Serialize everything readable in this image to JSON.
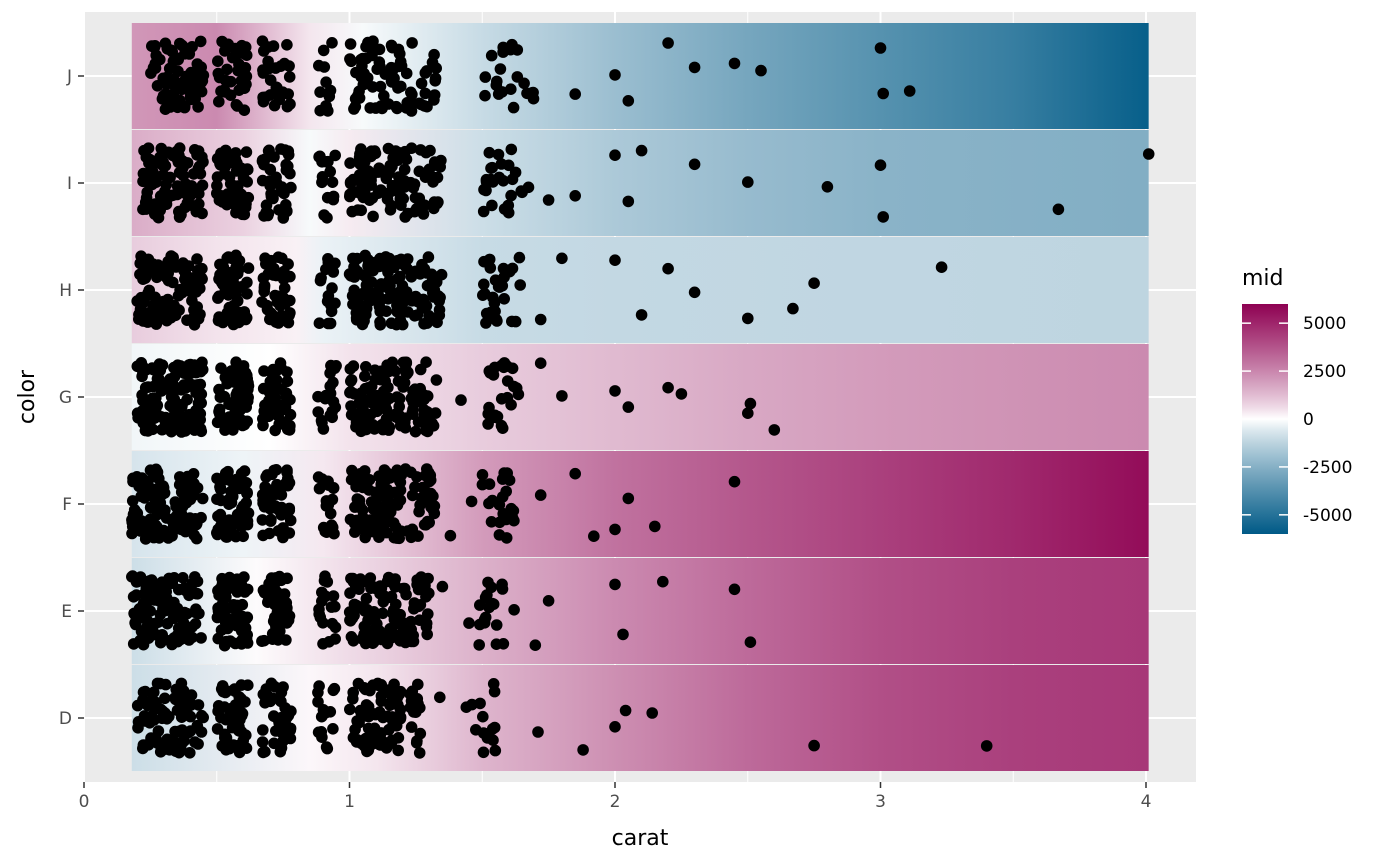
{
  "chart_data": {
    "type": "scatter",
    "subtype": "jittered strip plot over gradient band background",
    "xlabel": "carat",
    "ylabel": "color",
    "xlim": [
      0,
      4.2
    ],
    "x_ticks": [
      "0",
      "1",
      "2",
      "3",
      "4"
    ],
    "x_tick_values": [
      0,
      1,
      2,
      3,
      4
    ],
    "categories": [
      "D",
      "E",
      "F",
      "G",
      "H",
      "I",
      "J"
    ],
    "band_x_range": [
      0.18,
      4.01
    ],
    "point_color": "#000000",
    "panel_background": "#ebebeb",
    "grid_color": "#ffffff",
    "legend": {
      "title": "mid",
      "position": "right",
      "labels": [
        "5000",
        "2500",
        "0",
        "-2500",
        "-5000"
      ],
      "label_values": [
        5000,
        2500,
        0,
        -2500,
        -5000
      ],
      "range": [
        -6000,
        6000
      ],
      "colors": {
        "low": "#005A87",
        "mid": "#ffffff",
        "high": "#8E0152"
      }
    },
    "band_gradients": [
      {
        "category": "D",
        "stops": [
          [
            0.18,
            -900
          ],
          [
            0.85,
            100
          ],
          [
            1.1,
            400
          ],
          [
            1.5,
            1400
          ],
          [
            2.0,
            2300
          ],
          [
            2.5,
            3200
          ],
          [
            3.0,
            3900
          ],
          [
            3.5,
            4300
          ],
          [
            4.01,
            4500
          ]
        ]
      },
      {
        "category": "E",
        "stops": [
          [
            0.18,
            -900
          ],
          [
            0.65,
            50
          ],
          [
            1.0,
            600
          ],
          [
            1.5,
            1500
          ],
          [
            2.0,
            2400
          ],
          [
            2.5,
            3200
          ],
          [
            3.0,
            3900
          ],
          [
            3.5,
            4300
          ],
          [
            4.01,
            4500
          ]
        ]
      },
      {
        "category": "F",
        "stops": [
          [
            0.18,
            -700
          ],
          [
            0.6,
            -250
          ],
          [
            0.9,
            350
          ],
          [
            1.5,
            2000
          ],
          [
            2.0,
            3000
          ],
          [
            2.5,
            3700
          ],
          [
            3.0,
            4300
          ],
          [
            3.5,
            4900
          ],
          [
            4.01,
            5700
          ]
        ]
      },
      {
        "category": "G",
        "stops": [
          [
            0.18,
            -200
          ],
          [
            0.7,
            0
          ],
          [
            1.0,
            450
          ],
          [
            1.5,
            900
          ],
          [
            2.0,
            1300
          ],
          [
            2.5,
            1700
          ],
          [
            3.0,
            2000
          ],
          [
            3.5,
            2200
          ],
          [
            4.01,
            2400
          ]
        ]
      },
      {
        "category": "H",
        "stops": [
          [
            0.18,
            900
          ],
          [
            0.5,
            450
          ],
          [
            0.8,
            200
          ],
          [
            0.9,
            -300
          ],
          [
            1.5,
            -1000
          ],
          [
            2.0,
            -1100
          ],
          [
            3.0,
            -1150
          ],
          [
            4.01,
            -1200
          ]
        ]
      },
      {
        "category": "I",
        "stops": [
          [
            0.18,
            1600
          ],
          [
            0.6,
            800
          ],
          [
            0.85,
            -100
          ],
          [
            1.0,
            300
          ],
          [
            1.5,
            -900
          ],
          [
            2.0,
            -1600
          ],
          [
            2.5,
            -2100
          ],
          [
            3.0,
            -2400
          ],
          [
            4.01,
            -2600
          ]
        ]
      },
      {
        "category": "J",
        "stops": [
          [
            0.18,
            2100
          ],
          [
            0.5,
            2400
          ],
          [
            0.85,
            400
          ],
          [
            1.05,
            -100
          ],
          [
            1.5,
            -1000
          ],
          [
            2.0,
            -2000
          ],
          [
            2.5,
            -2900
          ],
          [
            3.0,
            -3700
          ],
          [
            3.5,
            -4500
          ],
          [
            4.01,
            -5800
          ]
        ]
      }
    ],
    "point_clusters": [
      {
        "category": "D",
        "ranges": [
          [
            0.2,
            0.45,
            90
          ],
          [
            0.5,
            0.62,
            55
          ],
          [
            0.67,
            0.78,
            40
          ],
          [
            0.88,
            0.95,
            15
          ],
          [
            1.0,
            1.2,
            75
          ],
          [
            1.22,
            1.27,
            15
          ],
          [
            1.46,
            1.55,
            14
          ]
        ],
        "x": [
          1.34,
          1.44,
          1.71,
          1.88,
          2.0,
          2.04,
          2.14,
          2.75,
          3.4
        ]
      },
      {
        "category": "E",
        "ranges": [
          [
            0.18,
            0.45,
            110
          ],
          [
            0.5,
            0.62,
            60
          ],
          [
            0.67,
            0.78,
            45
          ],
          [
            0.88,
            0.95,
            18
          ],
          [
            1.0,
            1.22,
            85
          ],
          [
            1.23,
            1.3,
            25
          ],
          [
            1.48,
            1.58,
            18
          ]
        ],
        "x": [
          1.35,
          1.45,
          1.62,
          1.7,
          1.75,
          2.0,
          2.03,
          2.18,
          2.45,
          2.51
        ]
      },
      {
        "category": "F",
        "ranges": [
          [
            0.18,
            0.45,
            120
          ],
          [
            0.5,
            0.62,
            65
          ],
          [
            0.67,
            0.78,
            50
          ],
          [
            0.88,
            0.95,
            20
          ],
          [
            1.0,
            1.22,
            90
          ],
          [
            1.23,
            1.32,
            30
          ],
          [
            1.5,
            1.62,
            22
          ]
        ],
        "x": [
          1.38,
          1.46,
          1.72,
          1.85,
          1.92,
          2.0,
          2.05,
          2.15,
          2.45
        ]
      },
      {
        "category": "G",
        "ranges": [
          [
            0.2,
            0.45,
            120
          ],
          [
            0.5,
            0.62,
            65
          ],
          [
            0.67,
            0.78,
            50
          ],
          [
            0.88,
            0.95,
            20
          ],
          [
            1.0,
            1.22,
            95
          ],
          [
            1.23,
            1.33,
            32
          ],
          [
            1.5,
            1.64,
            25
          ]
        ],
        "x": [
          1.42,
          1.72,
          1.8,
          2.0,
          2.05,
          2.2,
          2.25,
          2.5,
          2.51,
          2.6
        ]
      },
      {
        "category": "H",
        "ranges": [
          [
            0.2,
            0.45,
            100
          ],
          [
            0.5,
            0.62,
            60
          ],
          [
            0.67,
            0.78,
            45
          ],
          [
            0.88,
            0.95,
            18
          ],
          [
            1.0,
            1.22,
            90
          ],
          [
            1.23,
            1.35,
            35
          ],
          [
            1.5,
            1.65,
            28
          ]
        ],
        "x": [
          1.72,
          1.8,
          2.0,
          2.1,
          2.2,
          2.3,
          2.5,
          2.67,
          2.75,
          3.23
        ]
      },
      {
        "category": "I",
        "ranges": [
          [
            0.22,
            0.45,
            95
          ],
          [
            0.5,
            0.62,
            55
          ],
          [
            0.67,
            0.78,
            40
          ],
          [
            0.88,
            0.95,
            15
          ],
          [
            1.0,
            1.22,
            80
          ],
          [
            1.23,
            1.35,
            30
          ],
          [
            1.5,
            1.68,
            26
          ]
        ],
        "x": [
          1.75,
          1.85,
          2.0,
          2.05,
          2.1,
          2.3,
          2.5,
          2.8,
          3.0,
          3.01,
          3.67,
          4.01
        ]
      },
      {
        "category": "J",
        "ranges": [
          [
            0.25,
            0.45,
            70
          ],
          [
            0.5,
            0.62,
            40
          ],
          [
            0.67,
            0.78,
            30
          ],
          [
            0.88,
            0.95,
            12
          ],
          [
            1.0,
            1.22,
            60
          ],
          [
            1.23,
            1.33,
            20
          ],
          [
            1.5,
            1.7,
            22
          ]
        ],
        "x": [
          1.85,
          2.0,
          2.05,
          2.2,
          2.3,
          2.45,
          2.55,
          3.0,
          3.01,
          3.11
        ]
      }
    ]
  }
}
